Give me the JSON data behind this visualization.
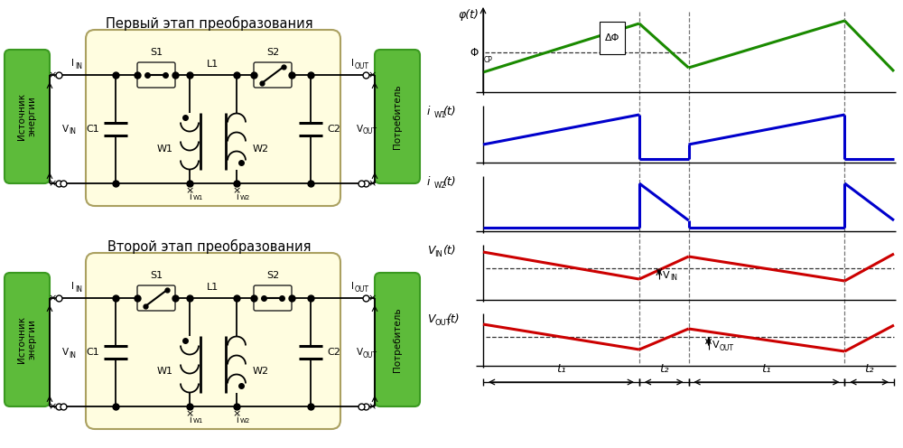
{
  "fig_width": 10.0,
  "fig_height": 4.96,
  "bg_white": "#ffffff",
  "yellow_bg": "#fffde0",
  "green_bg": "#5dbb3a",
  "green_border": "#3a9920",
  "title1": "Первый этап преобразования",
  "title2": "Второй этап преобразования",
  "green_left_text": "Источник\nэнергии",
  "green_right_text": "Потребитель",
  "osc_green": "#1a8a00",
  "osc_blue": "#0000cc",
  "osc_red": "#cc0000",
  "dashed_color": "#777777",
  "label_fontsize": 8,
  "title_fontsize": 10.5
}
